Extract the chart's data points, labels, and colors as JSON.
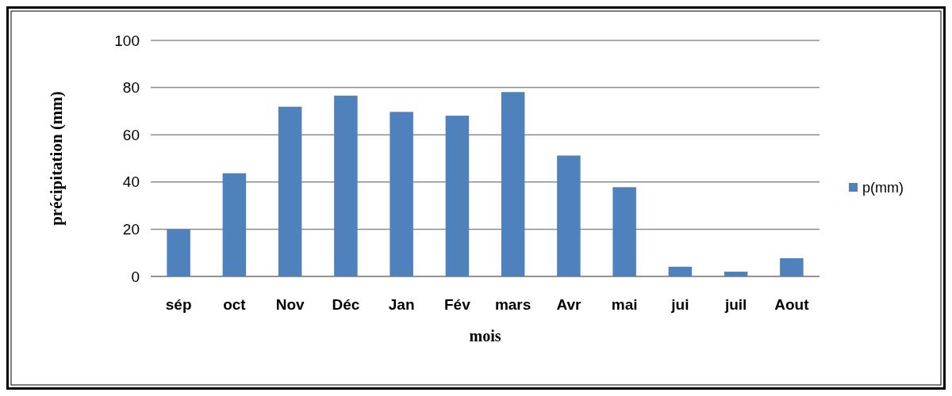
{
  "chart_data": {
    "type": "bar",
    "xlabel": "mois",
    "ylabel": "précipitation (mm)",
    "categories": [
      "sép",
      "oct",
      "Nov",
      "Déc",
      "Jan",
      "Fév",
      "mars",
      "Avr",
      "mai",
      "jui",
      "juil",
      "Aout"
    ],
    "series": [
      {
        "name": "p(mm)",
        "color": "#4f81bd",
        "values": [
          20,
          43.7,
          71.9,
          76.6,
          69.7,
          68.1,
          78.1,
          51.2,
          37.8,
          4.1,
          2,
          7.7
        ]
      }
    ],
    "ylim": [
      0,
      100
    ],
    "yticks": [
      0,
      20,
      40,
      60,
      80,
      100
    ],
    "grid": "y",
    "legend": "right"
  }
}
